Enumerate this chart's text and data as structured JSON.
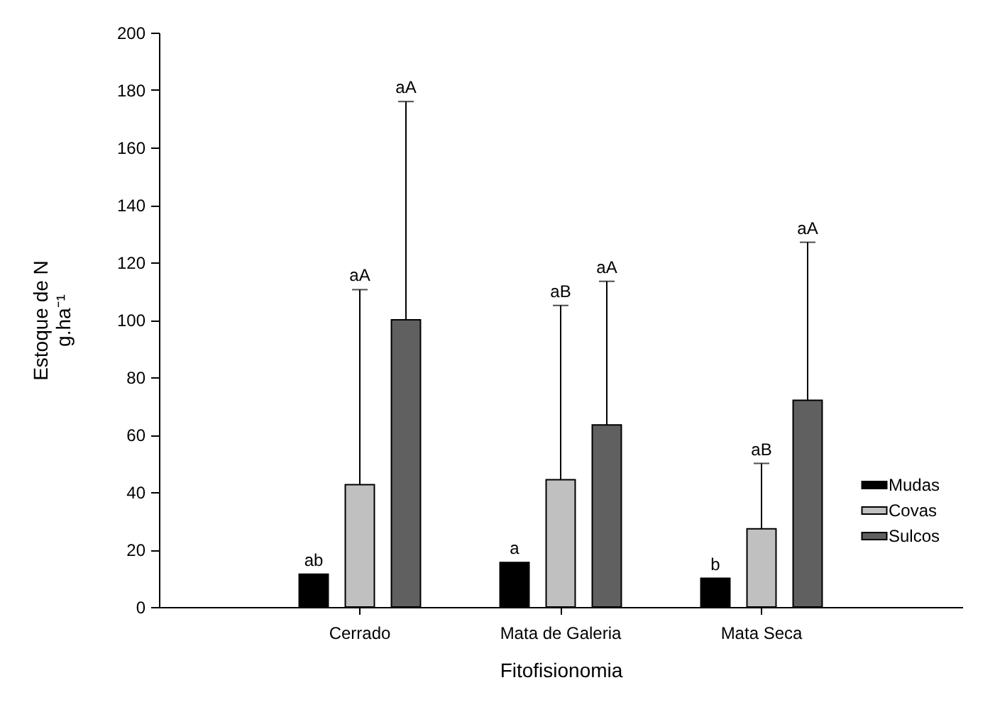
{
  "chart_data": {
    "type": "bar",
    "xlabel": "Fitofisionomia",
    "ylabel": "Estoque de N\ng.ha⁻¹",
    "categories": [
      "Cerrado",
      "Mata de Galeria",
      "Mata Seca"
    ],
    "series": [
      {
        "name": "Mudas",
        "color": "#000000",
        "values": [
          11.4,
          15.5,
          10
        ],
        "value_labels": [
          "ab",
          "a",
          "b"
        ]
      },
      {
        "name": "Covas",
        "color": "#c0c0c0",
        "values": [
          42.6,
          44.3,
          27.2
        ],
        "errors": [
          [
            42.6,
            110.5
          ],
          [
            44.3,
            105
          ],
          [
            27.2,
            50
          ]
        ]
      },
      {
        "name": "Sulcos",
        "color": "#606060",
        "values": [
          100,
          63.4,
          72
        ],
        "errors": [
          [
            100,
            176
          ],
          [
            63.4,
            113.4
          ],
          [
            72,
            127
          ]
        ]
      }
    ],
    "annotations": [
      "aA",
      "aA",
      "aB",
      "aA",
      "aB",
      "aA"
    ],
    "ylim": [
      0,
      200
    ],
    "yticks": [
      0,
      20,
      40,
      60,
      80,
      100,
      120,
      140,
      160,
      180,
      200
    ],
    "grid": false,
    "legend": "right"
  }
}
